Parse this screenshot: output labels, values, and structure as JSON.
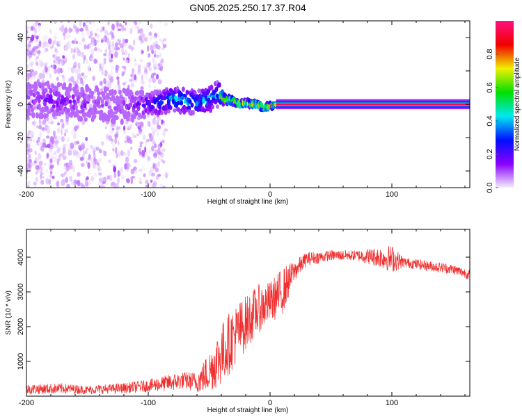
{
  "chart_data": [
    {
      "type": "heatmap",
      "title": "GN05.2025.250.17.37.R04",
      "xlabel": "Height of straight line (km)",
      "ylabel": "Frequency (Hz)",
      "xlim": [
        -200,
        164
      ],
      "ylim": [
        -50,
        50
      ],
      "xticks": [
        -200,
        -100,
        0,
        100
      ],
      "yticks": [
        -40,
        -20,
        0,
        20,
        40
      ],
      "colorbar": {
        "label": "Normalized spectral amplitude",
        "range": [
          0,
          1
        ],
        "ticks": [
          "0.0",
          "0.2",
          "0.4",
          "0.6",
          "0.8"
        ],
        "colors": [
          "#f4eefc",
          "#8a00ff",
          "#0010ff",
          "#00e8f0",
          "#00e000",
          "#f0f000",
          "#f00000",
          "#ff1080"
        ]
      },
      "ridge": {
        "x": [
          -200,
          -180,
          -160,
          -140,
          -120,
          -100,
          -90,
          -80,
          -70,
          -60,
          -50,
          -42,
          -38,
          -30,
          -25,
          -20,
          -15,
          -10,
          -5,
          0,
          5,
          20,
          60,
          90,
          120,
          164
        ],
        "freq": [
          2,
          3,
          1,
          0,
          -1,
          0,
          1,
          3,
          2,
          1,
          3,
          6,
          3,
          2,
          0,
          1,
          0,
          0,
          -2,
          -1,
          0,
          0,
          0,
          0,
          0,
          0
        ],
        "amplitude": [
          0.15,
          0.18,
          0.15,
          0.12,
          0.12,
          0.25,
          0.35,
          0.45,
          0.45,
          0.4,
          0.45,
          0.4,
          0.85,
          0.9,
          0.85,
          0.9,
          0.92,
          0.9,
          0.9,
          0.9,
          0.95,
          0.95,
          0.95,
          0.95,
          0.95,
          0.95
        ],
        "spread_hz": [
          10,
          10,
          10,
          10,
          10,
          7,
          7,
          7,
          7,
          7,
          7,
          8,
          3,
          2,
          2,
          2,
          2,
          2,
          2,
          2,
          1.5,
          1.5,
          1.5,
          1.5,
          1.5,
          1.5
        ]
      },
      "background_noise": {
        "x_range": [
          -200,
          -100
        ],
        "level": 0.08
      }
    },
    {
      "type": "line",
      "xlabel": "Height of straight line (km)",
      "ylabel": "SNR (10 * v/v)",
      "xlim": [
        -200,
        164
      ],
      "ylim": [
        0,
        4800
      ],
      "xticks": [
        -200,
        -100,
        0,
        100
      ],
      "yticks": [
        1000,
        2000,
        3000,
        4000
      ],
      "color": "#f03030",
      "series": [
        {
          "name": "SNR",
          "x": [
            -200,
            -170,
            -150,
            -120,
            -100,
            -80,
            -70,
            -60,
            -50,
            -40,
            -30,
            -20,
            -10,
            0,
            10,
            20,
            30,
            50,
            70,
            90,
            100,
            110,
            130,
            150,
            164
          ],
          "mean": [
            200,
            220,
            180,
            230,
            300,
            400,
            450,
            400,
            700,
            1200,
            1700,
            2100,
            2500,
            2700,
            3000,
            3600,
            3950,
            4050,
            4050,
            4000,
            3950,
            3850,
            3750,
            3650,
            3500
          ],
          "spread": [
            150,
            150,
            120,
            150,
            180,
            250,
            250,
            300,
            600,
            900,
            900,
            800,
            700,
            600,
            700,
            300,
            200,
            150,
            150,
            300,
            400,
            150,
            150,
            150,
            150
          ]
        }
      ]
    }
  ]
}
